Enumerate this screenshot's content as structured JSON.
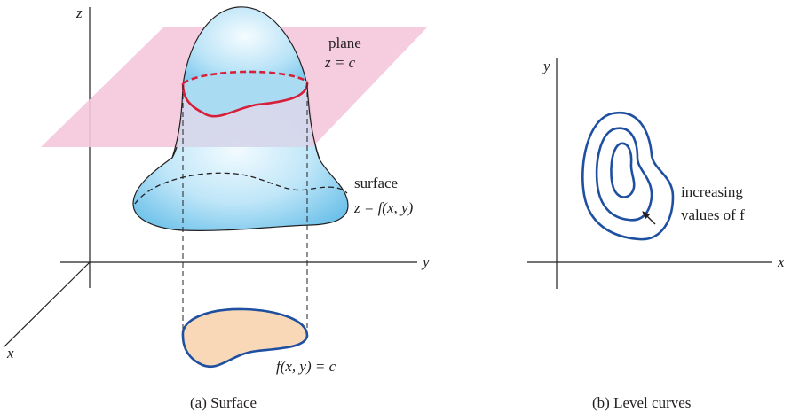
{
  "panel_a": {
    "axis_z": "z",
    "axis_y": "y",
    "axis_x": "x",
    "plane_label_1": "plane",
    "plane_label_2": "z = c",
    "surface_label_1": "surface",
    "surface_label_2": "z = f(x, y)",
    "level_label": "f(x, y) = c",
    "caption": "(a) Surface"
  },
  "panel_b": {
    "axis_y": "y",
    "axis_x": "x",
    "note_1": "increasing",
    "note_2": "values of f",
    "caption": "(b) Level curves"
  },
  "colors": {
    "plane": "#f5c6dc",
    "surface": "#8fd0ee",
    "contour": "#1f4fa0",
    "level_slice": "#d81f3a",
    "shadow_fill": "#f9d8b8"
  }
}
